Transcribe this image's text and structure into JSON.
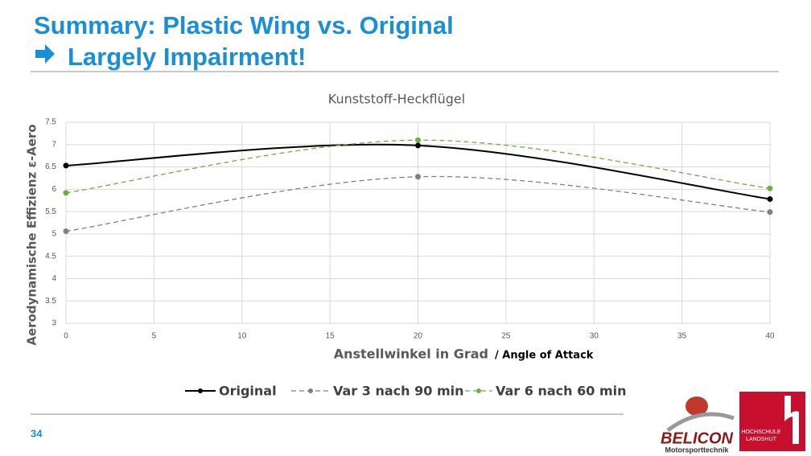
{
  "slide": {
    "title": "Summary: Plastic Wing vs. Original",
    "subtitle": "Largely Impairment!",
    "page_number": "34",
    "logos": {
      "belicon": "BELICON",
      "belicon_sub": "Motorsporttechnik",
      "school_line1": "HOCHSCHULE",
      "school_line2": "LANDSHUT"
    }
  },
  "chart_data": {
    "type": "line",
    "title": "Kunststoff-Heckflügel",
    "x_label": "Anstellwinkel in Grad",
    "x_label_note": "/ Angle of Attack",
    "y_label": "Aerodynamische Effizienz  ε-Aero",
    "x": [
      0,
      20,
      40
    ],
    "series": [
      {
        "name": "Original",
        "color": "#000000",
        "line_style": "solid",
        "values": [
          6.53,
          6.98,
          5.78
        ]
      },
      {
        "name": "Var 3 nach 90 min",
        "color": "#808080",
        "line_style": "dashed",
        "values": [
          5.06,
          6.28,
          5.49
        ]
      },
      {
        "name": "Var 6 nach 60 min",
        "color": "#70ad47",
        "line_style": "dashed",
        "values": [
          5.92,
          7.1,
          6.02
        ]
      }
    ],
    "xlim": [
      0,
      40
    ],
    "xticks": [
      0,
      5,
      10,
      15,
      20,
      25,
      30,
      35,
      40
    ],
    "ylim": [
      3,
      7.5
    ],
    "yticks": [
      3,
      3.5,
      4,
      4.5,
      5,
      5.5,
      6,
      6.5,
      7,
      7.5
    ],
    "grid": true,
    "smooth": true,
    "legend": "bottom"
  }
}
